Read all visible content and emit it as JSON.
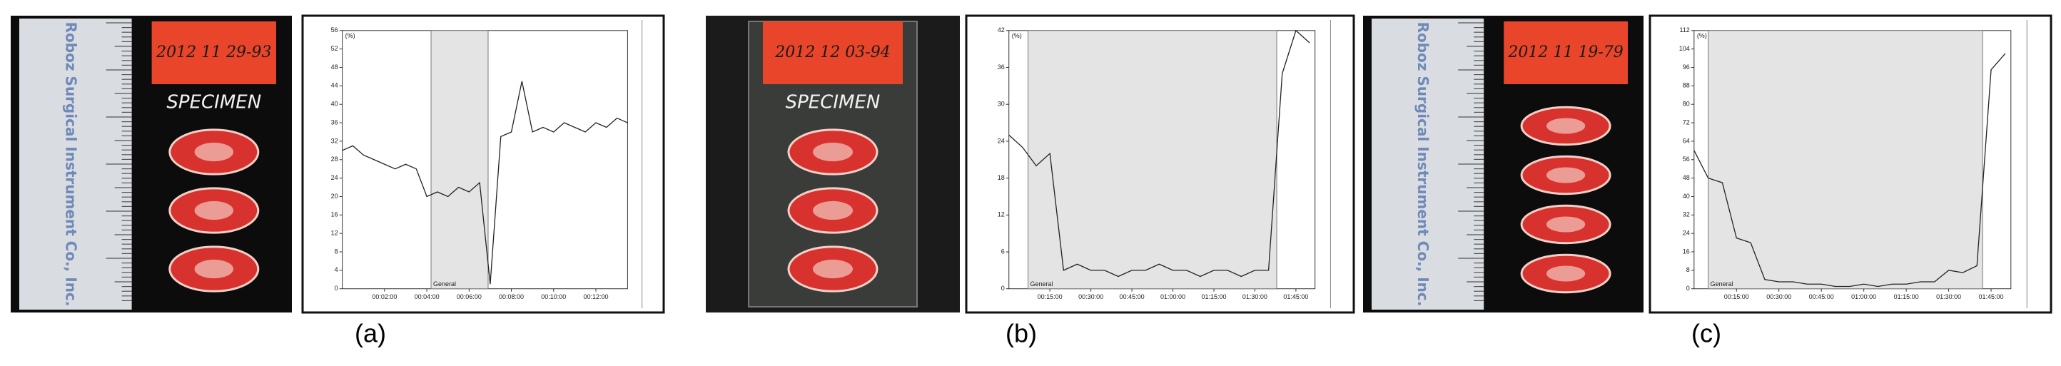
{
  "panels": [
    {
      "label": "(a)",
      "photo": {
        "date_label": "2012 11 29-93",
        "specimen": "SPECIMEN",
        "ruler_text": "Roboz Surgical Instrument Co., Inc."
      },
      "chart_data": {
        "type": "line",
        "y_label": "(%)",
        "shade": [
          4.2,
          6.9
        ],
        "shade_label": "General",
        "x": [
          0,
          0.5,
          1,
          1.5,
          2,
          2.5,
          3,
          3.5,
          4,
          4.5,
          5,
          5.5,
          6,
          6.5,
          7,
          7.5,
          8,
          8.5,
          9,
          9.5,
          10,
          10.5,
          11,
          11.5,
          12,
          12.5,
          13,
          13.5
        ],
        "series": [
          {
            "color": "#222222",
            "values": [
              30,
              31,
              29,
              28,
              27,
              26,
              27,
              26,
              20,
              21,
              20,
              22,
              21,
              23,
              1,
              33,
              34,
              45,
              34,
              35,
              34,
              36,
              35,
              34,
              36,
              35,
              37,
              36
            ]
          }
        ],
        "xlim": [
          0,
          13.5
        ],
        "xticks": [
          {
            "value": 2,
            "label": "00:02:00"
          },
          {
            "value": 4,
            "label": "00:04:00"
          },
          {
            "value": 6,
            "label": "00:06:00"
          },
          {
            "value": 8,
            "label": "00:08:00"
          },
          {
            "value": 10,
            "label": "00:10:00"
          },
          {
            "value": 12,
            "label": "00:12:00"
          }
        ],
        "ylim": [
          0,
          56
        ],
        "yticks": [
          0,
          4,
          8,
          12,
          16,
          20,
          24,
          28,
          32,
          36,
          40,
          44,
          48,
          52,
          56
        ]
      }
    },
    {
      "label": "(b)",
      "photo": {
        "date_label": "2012 12 03-94",
        "specimen": "SPECIMEN"
      },
      "chart_data": {
        "type": "line",
        "y_label": "(%)",
        "shade": [
          7,
          98
        ],
        "shade_label": "General",
        "x": [
          0,
          5,
          10,
          15,
          20,
          25,
          30,
          35,
          40,
          45,
          50,
          55,
          60,
          65,
          70,
          75,
          80,
          85,
          90,
          95,
          100,
          105,
          110
        ],
        "series": [
          {
            "color": "#222222",
            "values": [
              25,
              23,
              20,
              22,
              3,
              4,
              3,
              3,
              2,
              3,
              3,
              4,
              3,
              3,
              2,
              3,
              3,
              2,
              3,
              3,
              35,
              42,
              40
            ]
          }
        ],
        "xlim": [
          0,
          112
        ],
        "xticks": [
          {
            "value": 15,
            "label": "00:15:00"
          },
          {
            "value": 30,
            "label": "00:30:00"
          },
          {
            "value": 45,
            "label": "00:45:00"
          },
          {
            "value": 60,
            "label": "01:00:00"
          },
          {
            "value": 75,
            "label": "01:15:00"
          },
          {
            "value": 90,
            "label": "01:30:00"
          },
          {
            "value": 105,
            "label": "01:45:00"
          }
        ],
        "ylim": [
          0,
          42
        ],
        "yticks": [
          0,
          6,
          12,
          18,
          24,
          30,
          36,
          42
        ]
      }
    },
    {
      "label": "(c)",
      "photo": {
        "date_label": "2012 11 19-79",
        "ruler_text": "Roboz Surgical Instrument Co., Inc."
      },
      "chart_data": {
        "type": "line",
        "y_label": "(%)",
        "shade": [
          5,
          102
        ],
        "shade_label": "General",
        "x": [
          0,
          5,
          10,
          15,
          20,
          25,
          30,
          35,
          40,
          45,
          50,
          55,
          60,
          65,
          70,
          75,
          80,
          85,
          90,
          95,
          100,
          105,
          110
        ],
        "series": [
          {
            "color": "#222222",
            "values": [
              60,
              48,
              46,
              22,
              20,
              4,
              3,
              3,
              2,
              2,
              1,
              1,
              2,
              1,
              2,
              2,
              3,
              3,
              8,
              7,
              10,
              95,
              102
            ]
          }
        ],
        "xlim": [
          0,
          112
        ],
        "xticks": [
          {
            "value": 15,
            "label": "00:15:00"
          },
          {
            "value": 30,
            "label": "00:30:00"
          },
          {
            "value": 45,
            "label": "00:45:00"
          },
          {
            "value": 60,
            "label": "01:00:00"
          },
          {
            "value": 75,
            "label": "01:15:00"
          },
          {
            "value": 90,
            "label": "01:30:00"
          },
          {
            "value": 105,
            "label": "01:45:00"
          }
        ],
        "ylim": [
          0,
          112
        ],
        "yticks": [
          0,
          8,
          16,
          24,
          32,
          40,
          48,
          56,
          64,
          72,
          80,
          88,
          96,
          104,
          112
        ]
      }
    }
  ]
}
